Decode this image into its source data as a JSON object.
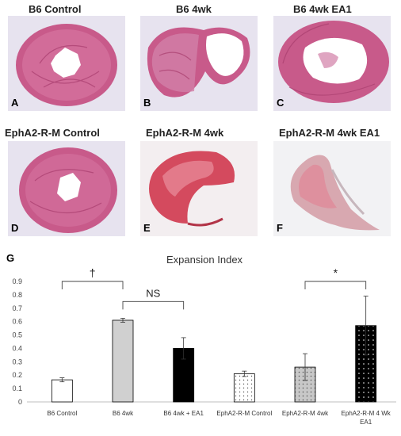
{
  "panels": [
    {
      "letter": "A",
      "title": "B6 Control"
    },
    {
      "letter": "B",
      "title": "B6 4wk"
    },
    {
      "letter": "C",
      "title": "B6 4wk EA1"
    },
    {
      "letter": "D",
      "title": "EphA2-R-M Control"
    },
    {
      "letter": "E",
      "title": "EphA2-R-M 4wk"
    },
    {
      "letter": "F",
      "title": "EphA2-R-M  4wk EA1"
    }
  ],
  "colors": {
    "tissue": "#c85a8a",
    "tissue_light": "#e6a3c3",
    "tissue_red": "#d44a5e",
    "background": "#e7e3ef",
    "bar_black": "#000000",
    "bar_gray": "#d0d0d0"
  },
  "chart_label": "G",
  "chart_data": {
    "type": "bar",
    "title": "Expansion Index",
    "categories": [
      "B6 Control",
      "B6 4wk",
      "B6 4wk + EA1",
      "EphA2-R-M Control",
      "EphA2-R-M 4wk",
      "EphA2-R-M 4 Wk EA1"
    ],
    "category_lines": [
      [
        "B6 Control"
      ],
      [
        "B6 4wk"
      ],
      [
        "B6 4wk + EA1"
      ],
      [
        "EphA2-R-M Control"
      ],
      [
        "EphA2-R-M 4wk"
      ],
      [
        "EphA2-R-M 4 Wk",
        "EA1"
      ]
    ],
    "values": [
      0.165,
      0.61,
      0.4,
      0.21,
      0.26,
      0.57
    ],
    "errors": [
      0.015,
      0.015,
      0.08,
      0.02,
      0.1,
      0.22
    ],
    "fills": [
      "white",
      "gray",
      "black",
      "white-dots",
      "gray-dots",
      "black-dots"
    ],
    "yticks": [
      "0",
      "0.1",
      "0.2",
      "0.3",
      "0.4",
      "0.5",
      "0.6",
      "0.7",
      "0.8",
      "0.9"
    ],
    "ylim": [
      0,
      0.9
    ],
    "grid": false,
    "annotations": [
      {
        "text": "†",
        "from": 0,
        "to": 1,
        "level": 0.9
      },
      {
        "text": "NS",
        "from": 1,
        "to": 2,
        "level": 0.75
      },
      {
        "text": "*",
        "from": 4,
        "to": 5,
        "level": 0.9
      }
    ]
  }
}
